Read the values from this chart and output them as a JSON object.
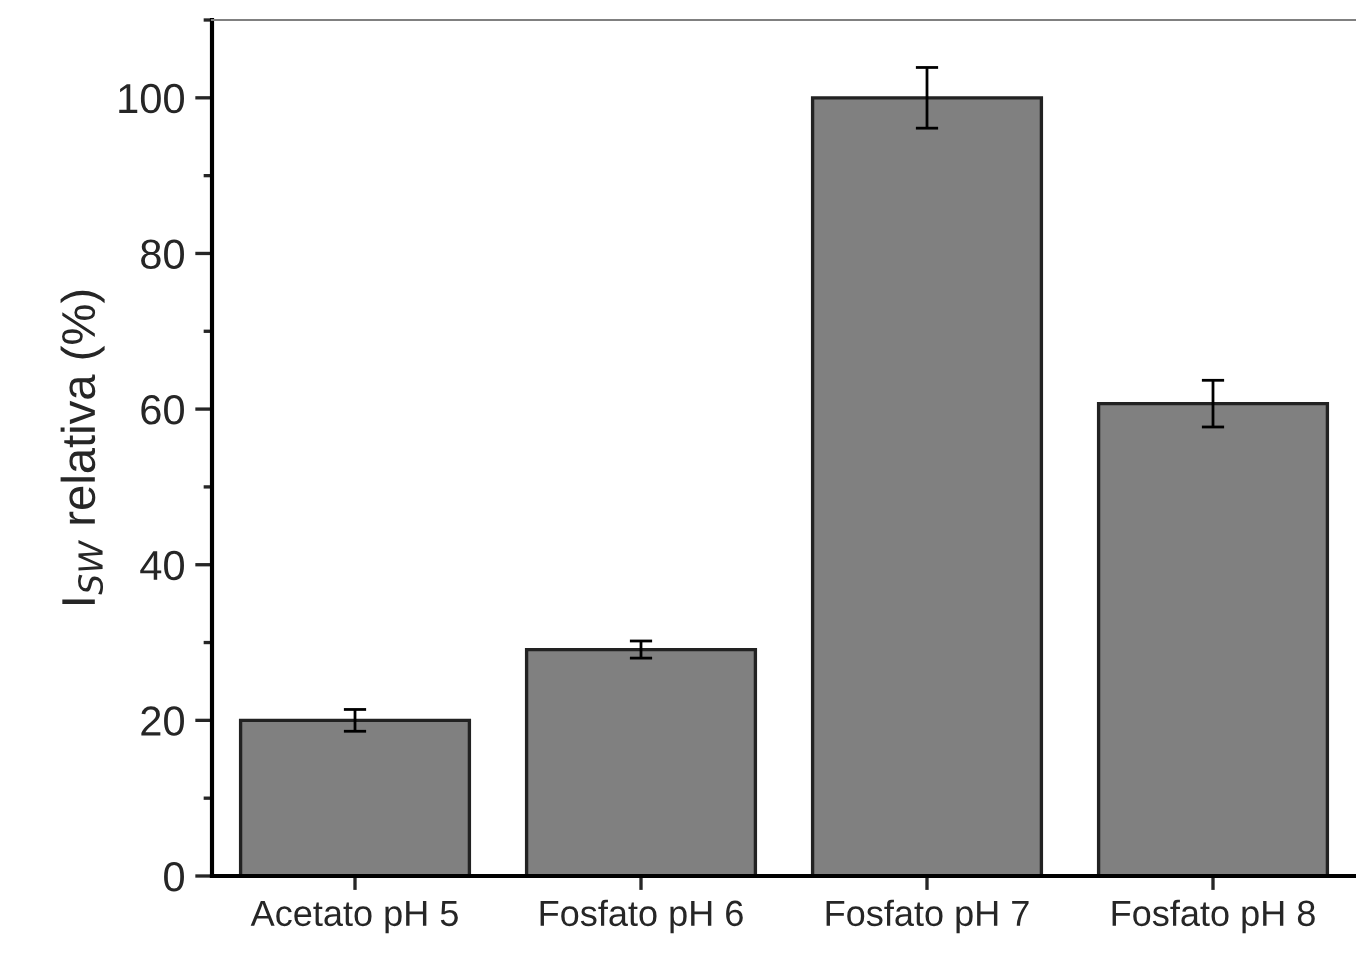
{
  "chart_data": {
    "type": "bar",
    "categories": [
      "Acetato pH 5",
      "Fosfato pH 6",
      "Fosfato pH 7",
      "Fosfato pH 8"
    ],
    "values": [
      20,
      29.1,
      100,
      60.7
    ],
    "errors": [
      1.4,
      1.1,
      3.9,
      3
    ],
    "color": "#808080",
    "ylabel": "I$_{SW}$ relativa (%)",
    "ylim": [
      0,
      110
    ],
    "yticks": [
      0,
      20,
      40,
      60,
      80,
      100
    ],
    "grid": false
  }
}
